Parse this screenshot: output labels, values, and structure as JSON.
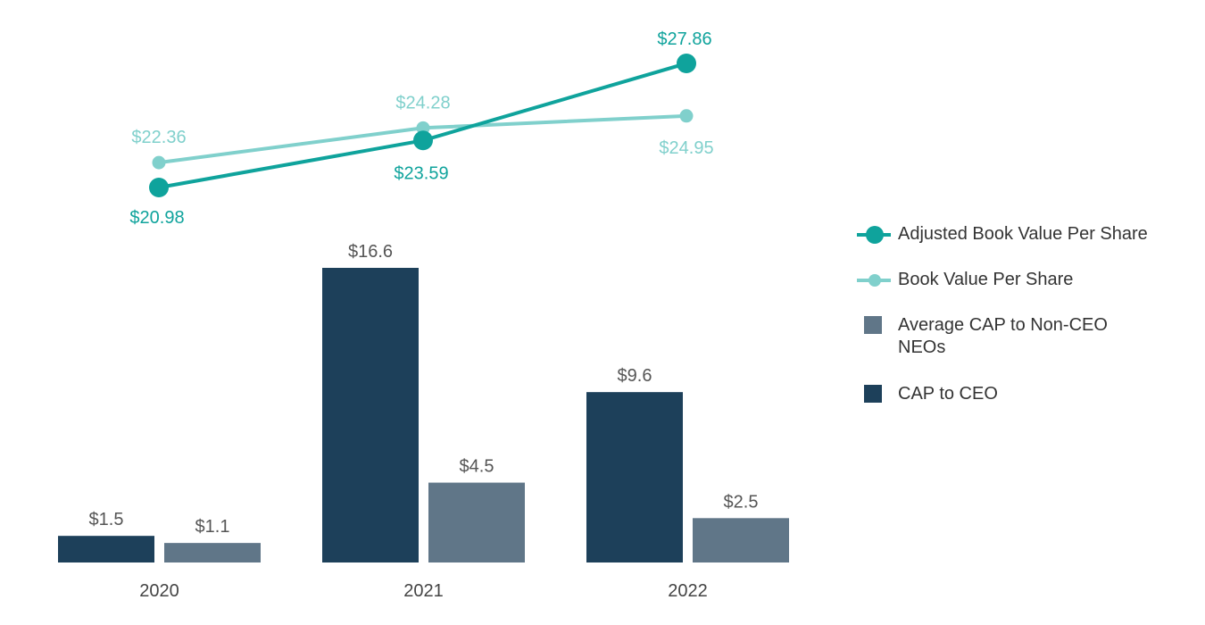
{
  "chart_data": {
    "type": "bar+line",
    "categories": [
      "2020",
      "2021",
      "2022"
    ],
    "bar_series": [
      {
        "name": "CAP to CEO",
        "values": [
          1.5,
          16.6,
          9.6
        ],
        "labels": [
          "$1.5",
          "$16.6",
          "$9.6"
        ],
        "color": "#1d405a"
      },
      {
        "name": "Average CAP to Non-CEO NEOs",
        "values": [
          1.1,
          4.5,
          2.5
        ],
        "labels": [
          "$1.1",
          "$4.5",
          "$2.5"
        ],
        "color": "#607688"
      }
    ],
    "line_series": [
      {
        "name": "Adjusted Book Value Per Share",
        "values": [
          20.98,
          23.59,
          27.86
        ],
        "labels": [
          "$20.98",
          "$23.59",
          "$27.86"
        ],
        "color": "#0fa39c"
      },
      {
        "name": "Book Value Per Share",
        "values": [
          22.36,
          24.28,
          24.95
        ],
        "labels": [
          "$22.36",
          "$24.28",
          "$24.95"
        ],
        "color": "#80d0cc"
      }
    ],
    "bar_ylim": [
      0,
      17.6
    ],
    "line_ylim": [
      20.0,
      28.6
    ],
    "legend": [
      {
        "label": "Adjusted Book Value Per Share",
        "symbol": "line-marker",
        "color": "#0fa39c"
      },
      {
        "label": "Book Value Per Share",
        "symbol": "line-marker",
        "color": "#80d0cc"
      },
      {
        "label": "Average CAP to Non-CEO NEOs",
        "symbol": "box",
        "color": "#607688"
      },
      {
        "label": "CAP to CEO",
        "symbol": "box",
        "color": "#1d405a"
      }
    ]
  }
}
